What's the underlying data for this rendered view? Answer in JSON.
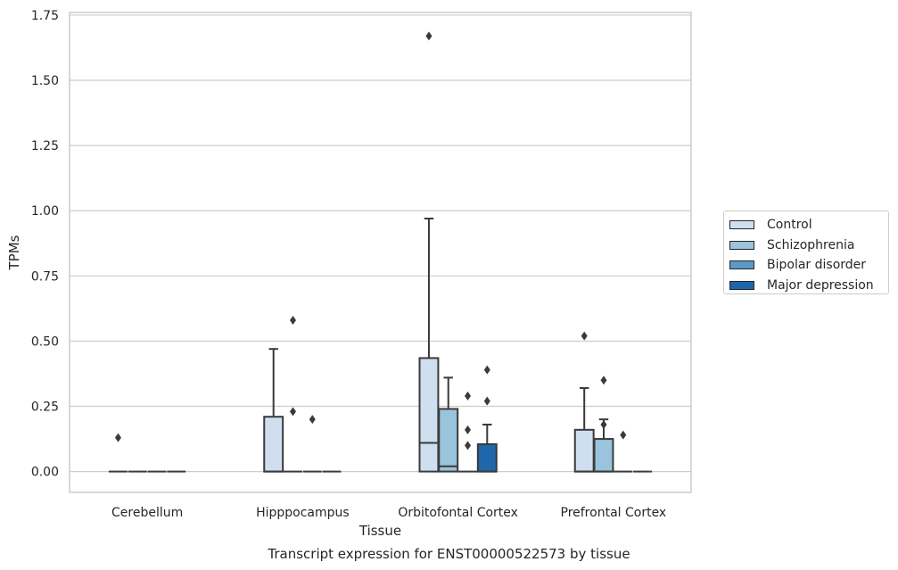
{
  "chart_data": {
    "type": "box",
    "title": "",
    "xlabel": "Tissue",
    "ylabel": "TPMs",
    "caption": "Transcript expression for ENST00000522573 by tissue",
    "categories": [
      "Cerebellum",
      "Hipppocampus",
      "Orbitofontal Cortex",
      "Prefrontal Cortex"
    ],
    "ylim": [
      -0.08,
      1.76
    ],
    "yticks": [
      0.0,
      0.25,
      0.5,
      0.75,
      1.0,
      1.25,
      1.5,
      1.75
    ],
    "ytick_labels": [
      "0.00",
      "0.25",
      "0.50",
      "0.75",
      "1.00",
      "1.25",
      "1.50",
      "1.75"
    ],
    "grid": "horizontal",
    "legend_position": "right",
    "series": [
      {
        "name": "Control",
        "color": "#d0dff0",
        "boxes": [
          {
            "q1": 0,
            "median": 0,
            "q3": 0,
            "whisker_low": 0,
            "whisker_high": 0,
            "outliers": [
              0.13
            ]
          },
          {
            "q1": 0,
            "median": 0,
            "q3": 0.21,
            "whisker_low": 0,
            "whisker_high": 0.47,
            "outliers": []
          },
          {
            "q1": 0,
            "median": 0.11,
            "q3": 0.435,
            "whisker_low": 0,
            "whisker_high": 0.97,
            "outliers": [
              1.67
            ]
          },
          {
            "q1": 0,
            "median": 0,
            "q3": 0.16,
            "whisker_low": 0,
            "whisker_high": 0.32,
            "outliers": [
              0.52
            ]
          }
        ]
      },
      {
        "name": "Schizophrenia",
        "color": "#9ac3dc",
        "boxes": [
          {
            "q1": 0,
            "median": 0,
            "q3": 0,
            "whisker_low": 0,
            "whisker_high": 0,
            "outliers": []
          },
          {
            "q1": 0,
            "median": 0,
            "q3": 0,
            "whisker_low": 0,
            "whisker_high": 0,
            "outliers": [
              0.58,
              0.23
            ]
          },
          {
            "q1": 0,
            "median": 0.02,
            "q3": 0.24,
            "whisker_low": 0,
            "whisker_high": 0.36,
            "outliers": []
          },
          {
            "q1": 0,
            "median": 0,
            "q3": 0.125,
            "whisker_low": 0,
            "whisker_high": 0.2,
            "outliers": [
              0.35,
              0.18
            ]
          }
        ]
      },
      {
        "name": "Bipolar disorder",
        "color": "#5a9ac9",
        "boxes": [
          {
            "q1": 0,
            "median": 0,
            "q3": 0,
            "whisker_low": 0,
            "whisker_high": 0,
            "outliers": []
          },
          {
            "q1": 0,
            "median": 0,
            "q3": 0,
            "whisker_low": 0,
            "whisker_high": 0,
            "outliers": [
              0.2
            ]
          },
          {
            "q1": 0,
            "median": 0,
            "q3": 0,
            "whisker_low": 0,
            "whisker_high": 0,
            "outliers": [
              0.29,
              0.16,
              0.1
            ]
          },
          {
            "q1": 0,
            "median": 0,
            "q3": 0,
            "whisker_low": 0,
            "whisker_high": 0,
            "outliers": [
              0.14
            ]
          }
        ]
      },
      {
        "name": "Major depression",
        "color": "#2066ab",
        "boxes": [
          {
            "q1": 0,
            "median": 0,
            "q3": 0,
            "whisker_low": 0,
            "whisker_high": 0,
            "outliers": []
          },
          {
            "q1": 0,
            "median": 0,
            "q3": 0,
            "whisker_low": 0,
            "whisker_high": 0,
            "outliers": []
          },
          {
            "q1": 0,
            "median": 0,
            "q3": 0.105,
            "whisker_low": 0,
            "whisker_high": 0.18,
            "outliers": [
              0.39,
              0.27
            ]
          },
          {
            "q1": 0,
            "median": 0,
            "q3": 0,
            "whisker_low": 0,
            "whisker_high": 0,
            "outliers": []
          }
        ]
      }
    ]
  }
}
